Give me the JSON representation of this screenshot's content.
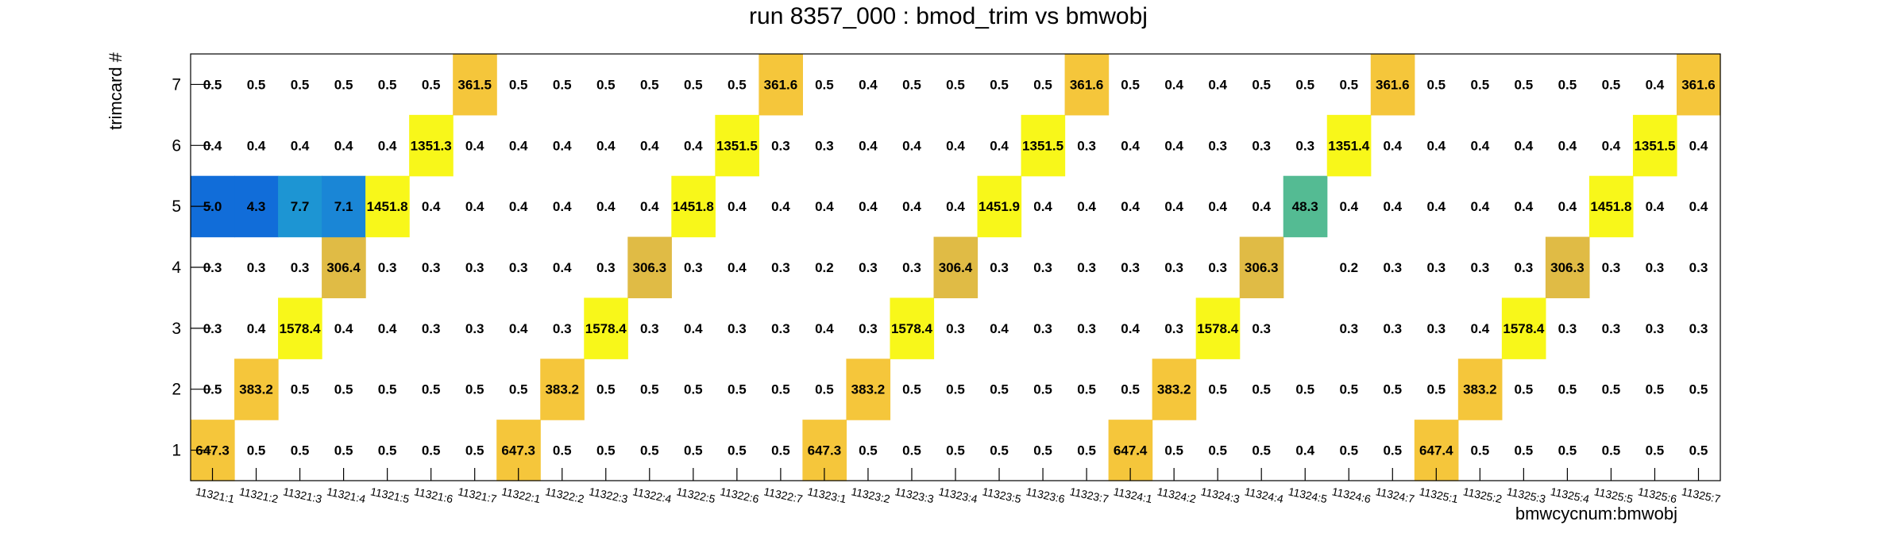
{
  "chart_data": {
    "type": "heatmap",
    "title": "run 8357_000 : bmod_trim vs bmwobj",
    "xlabel": "bmwcycnum:bmwobj",
    "ylabel": "trimcard #",
    "x_categories": [
      "11321:1",
      "11321:2",
      "11321:3",
      "11321:4",
      "11321:5",
      "11321:6",
      "11321:7",
      "11322:1",
      "11322:2",
      "11322:3",
      "11322:4",
      "11322:5",
      "11322:6",
      "11322:7",
      "11323:1",
      "11323:2",
      "11323:3",
      "11323:4",
      "11323:5",
      "11323:6",
      "11323:7",
      "11324:1",
      "11324:2",
      "11324:3",
      "11324:4",
      "11324:5",
      "11324:6",
      "11324:7",
      "11325:1",
      "11325:2",
      "11325:3",
      "11325:4",
      "11325:5",
      "11325:6",
      "11325:7"
    ],
    "y_categories": [
      "1",
      "2",
      "3",
      "4",
      "5",
      "6",
      "7"
    ],
    "values": [
      [
        "647.3",
        "0.5",
        "0.5",
        "0.5",
        "0.5",
        "0.5",
        "0.5",
        "647.3",
        "0.5",
        "0.5",
        "0.5",
        "0.5",
        "0.5",
        "0.5",
        "647.3",
        "0.5",
        "0.5",
        "0.5",
        "0.5",
        "0.5",
        "0.5",
        "647.4",
        "0.5",
        "0.5",
        "0.5",
        "0.4",
        "0.5",
        "0.5",
        "647.4",
        "0.5",
        "0.5",
        "0.5",
        "0.5",
        "0.5",
        "0.5"
      ],
      [
        "0.5",
        "383.2",
        "0.5",
        "0.5",
        "0.5",
        "0.5",
        "0.5",
        "0.5",
        "383.2",
        "0.5",
        "0.5",
        "0.5",
        "0.5",
        "0.5",
        "0.5",
        "383.2",
        "0.5",
        "0.5",
        "0.5",
        "0.5",
        "0.5",
        "0.5",
        "383.2",
        "0.5",
        "0.5",
        "0.5",
        "0.5",
        "0.5",
        "0.5",
        "383.2",
        "0.5",
        "0.5",
        "0.5",
        "0.5",
        "0.5"
      ],
      [
        "0.3",
        "0.4",
        "1578.4",
        "0.4",
        "0.4",
        "0.3",
        "0.3",
        "0.4",
        "0.3",
        "1578.4",
        "0.3",
        "0.4",
        "0.3",
        "0.3",
        "0.4",
        "0.3",
        "1578.4",
        "0.3",
        "0.4",
        "0.3",
        "0.3",
        "0.4",
        "0.3",
        "1578.4",
        "0.3",
        "",
        "0.3",
        "0.3",
        "0.3",
        "0.4",
        "1578.4",
        "0.3",
        "0.3",
        "0.3",
        "0.3"
      ],
      [
        "0.3",
        "0.3",
        "0.3",
        "306.4",
        "0.3",
        "0.3",
        "0.3",
        "0.3",
        "0.4",
        "0.3",
        "306.3",
        "0.3",
        "0.4",
        "0.3",
        "0.2",
        "0.3",
        "0.3",
        "306.4",
        "0.3",
        "0.3",
        "0.3",
        "0.3",
        "0.3",
        "0.3",
        "306.3",
        "",
        "0.2",
        "0.3",
        "0.3",
        "0.3",
        "0.3",
        "306.3",
        "0.3",
        "0.3",
        "0.3"
      ],
      [
        "5.0",
        "4.3",
        "7.7",
        "7.1",
        "1451.8",
        "0.4",
        "0.4",
        "0.4",
        "0.4",
        "0.4",
        "0.4",
        "1451.8",
        "0.4",
        "0.4",
        "0.4",
        "0.4",
        "0.4",
        "0.4",
        "1451.9",
        "0.4",
        "0.4",
        "0.4",
        "0.4",
        "0.4",
        "0.4",
        "48.3",
        "0.4",
        "0.4",
        "0.4",
        "0.4",
        "0.4",
        "0.4",
        "1451.8",
        "0.4",
        "0.4"
      ],
      [
        "0.4",
        "0.4",
        "0.4",
        "0.4",
        "0.4",
        "1351.3",
        "0.4",
        "0.4",
        "0.4",
        "0.4",
        "0.4",
        "0.4",
        "1351.5",
        "0.3",
        "0.3",
        "0.4",
        "0.4",
        "0.4",
        "0.4",
        "1351.5",
        "0.3",
        "0.4",
        "0.4",
        "0.3",
        "0.3",
        "0.3",
        "1351.4",
        "0.4",
        "0.4",
        "0.4",
        "0.4",
        "0.4",
        "0.4",
        "1351.5",
        "0.4"
      ],
      [
        "0.5",
        "0.5",
        "0.5",
        "0.5",
        "0.5",
        "0.5",
        "361.5",
        "0.5",
        "0.5",
        "0.5",
        "0.5",
        "0.5",
        "0.5",
        "361.6",
        "0.5",
        "0.4",
        "0.5",
        "0.5",
        "0.5",
        "0.5",
        "361.6",
        "0.5",
        "0.4",
        "0.4",
        "0.5",
        "0.5",
        "0.5",
        "361.6",
        "0.5",
        "0.5",
        "0.5",
        "0.5",
        "0.5",
        "0.4",
        "361.6"
      ]
    ],
    "grid": false,
    "colors": {
      "yellow": "#f8f71a",
      "gold": "#f5c63b",
      "tan": "#e0bb45",
      "teal": "#54bb93",
      "blue_dark": "#116dd9",
      "blue_mid": "#1a86d6",
      "blue": "#1d95d3",
      "frame": "#000000"
    }
  }
}
